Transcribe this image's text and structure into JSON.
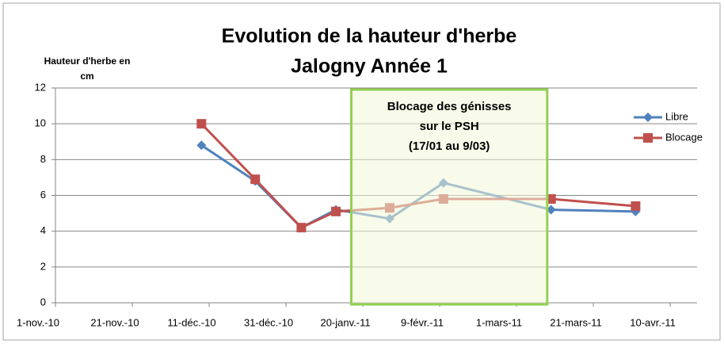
{
  "chart_data": {
    "type": "line",
    "title": [
      "Evolution de la hauteur d'herbe",
      "Jalogny Année 1"
    ],
    "y_label": [
      "Hauteur d'herbe en",
      "cm"
    ],
    "x": [
      "2010-12-09",
      "2010-12-23",
      "2011-01-04",
      "2011-01-13",
      "2011-01-27",
      "2011-02-10",
      "2011-03-10",
      "2011-04-01"
    ],
    "series": [
      {
        "name": "Libre",
        "color": "#4f81bd",
        "marker": "diamond",
        "values": [
          8.8,
          6.8,
          4.2,
          5.2,
          4.7,
          6.7,
          5.2,
          5.1
        ]
      },
      {
        "name": "Blocage",
        "color": "#c0504d",
        "marker": "square",
        "values": [
          10,
          6.9,
          4.2,
          5.1,
          5.3,
          5.8,
          5.8,
          5.4
        ]
      }
    ],
    "xlim": [
      "2010-11-01",
      "2011-04-17"
    ],
    "xticks": [
      {
        "value": "2010-11-01",
        "label": "1-nov.-10"
      },
      {
        "value": "2010-11-21",
        "label": "21-nov.-10"
      },
      {
        "value": "2010-12-11",
        "label": "11-déc.-10"
      },
      {
        "value": "2010-12-31",
        "label": "31-déc.-10"
      },
      {
        "value": "2011-01-20",
        "label": "20-janv.-11"
      },
      {
        "value": "2011-02-09",
        "label": "9-févr.-11"
      },
      {
        "value": "2011-03-01",
        "label": "1-mars-11"
      },
      {
        "value": "2011-03-21",
        "label": "21-mars-11"
      },
      {
        "value": "2011-04-10",
        "label": "10-avr.-11"
      }
    ],
    "ylim": [
      0,
      12
    ],
    "yticks": [
      0,
      2,
      4,
      6,
      8,
      10,
      12
    ],
    "grid": true,
    "legend": "top-right",
    "annotation": {
      "text": [
        "Blocage des génisses",
        "sur le PSH",
        "(17/01 au 9/03)"
      ],
      "from": "2011-01-17",
      "to": "2011-03-09",
      "color": "#92d050"
    }
  }
}
